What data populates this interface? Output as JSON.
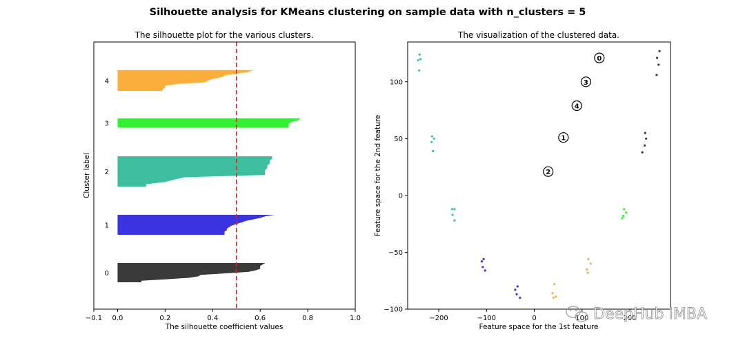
{
  "suptitle": "Silhouette analysis for KMeans clustering on sample data with n_clusters = 5",
  "watermark": "DeepHub IMBA",
  "chart_data": [
    {
      "type": "area",
      "title": "The silhouette plot for the various clusters.",
      "xlabel": "The silhouette coefficient values",
      "ylabel": "Cluster label",
      "xlim": [
        -0.1,
        1.0
      ],
      "xticks": [
        -0.1,
        0.0,
        0.2,
        0.4,
        0.6,
        0.8,
        1.0
      ],
      "xtick_labels": [
        "−0.1",
        "0.0",
        "0.2",
        "0.4",
        "0.6",
        "0.8",
        "1.0"
      ],
      "average_silhouette_score": 0.5,
      "average_line_color": "#d62728",
      "clusters": [
        {
          "label": "0",
          "color": "#3a3a3a",
          "profile": [
            0.62,
            0.61,
            0.6,
            0.6,
            0.6,
            0.58,
            0.55,
            0.45,
            0.35,
            0.34,
            0.3,
            0.2,
            0.1,
            0.1
          ]
        },
        {
          "label": "1",
          "color": "#3a34e0",
          "profile": [
            0.66,
            0.62,
            0.6,
            0.57,
            0.54,
            0.52,
            0.5,
            0.48,
            0.47,
            0.46,
            0.46,
            0.45,
            0.45,
            0.45
          ]
        },
        {
          "label": "2",
          "color": "#3dbf9f",
          "profile": [
            0.65,
            0.65,
            0.64,
            0.64,
            0.63,
            0.63,
            0.62,
            0.62,
            0.62,
            0.28,
            0.24,
            0.2,
            0.12,
            0.12
          ]
        },
        {
          "label": "3",
          "color": "#33f033",
          "profile": [
            0.77,
            0.76,
            0.73,
            0.72,
            0.72,
            0.72
          ]
        },
        {
          "label": "4",
          "color": "#fbae3c",
          "profile": [
            0.57,
            0.55,
            0.5,
            0.45,
            0.44,
            0.4,
            0.38,
            0.37,
            0.25,
            0.2,
            0.2,
            0.19,
            0.19
          ]
        }
      ]
    },
    {
      "type": "scatter",
      "title": "The visualization of the clustered data.",
      "xlabel": "Feature space for the 1st feature",
      "ylabel": "Feature space for the 2nd feature",
      "xlim": [
        -265,
        285
      ],
      "ylim": [
        -100,
        135
      ],
      "xticks": [
        -200,
        -100,
        0,
        100,
        200
      ],
      "xtick_labels": [
        "−200",
        "−100",
        "0",
        "100",
        "200"
      ],
      "yticks": [
        -100,
        -50,
        0,
        50,
        100
      ],
      "ytick_labels": [
        "−100",
        "−50",
        "0",
        "50",
        "100"
      ],
      "series": [
        {
          "cluster": "0",
          "color": "#3a3a3a",
          "points": [
            [
              262,
              127
            ],
            [
              257,
              121
            ],
            [
              260,
              115
            ],
            [
              256,
              106
            ],
            [
              232,
              55
            ],
            [
              234,
              50
            ],
            [
              231,
              44
            ],
            [
              226,
              38
            ]
          ]
        },
        {
          "cluster": "1",
          "color": "#3a34e0",
          "points": [
            [
              -110,
              -58
            ],
            [
              -106,
              -56
            ],
            [
              -108,
              -63
            ],
            [
              -103,
              -66
            ],
            [
              -40,
              -83
            ],
            [
              -35,
              -80
            ],
            [
              -37,
              -87
            ],
            [
              -30,
              -90
            ]
          ]
        },
        {
          "cluster": "2",
          "color": "#3dbf9f",
          "points": [
            [
              -240,
              124
            ],
            [
              -243,
              119
            ],
            [
              -238,
              120
            ],
            [
              -241,
              110
            ],
            [
              -214,
              52
            ],
            [
              -210,
              50
            ],
            [
              -215,
              47
            ],
            [
              -212,
              39
            ],
            [
              -172,
              -12
            ],
            [
              -167,
              -12
            ],
            [
              -171,
              -17
            ],
            [
              -167,
              -22
            ]
          ]
        },
        {
          "cluster": "3",
          "color": "#33f033",
          "points": [
            [
              188,
              -12
            ],
            [
              192,
              -15
            ],
            [
              186,
              -18
            ],
            [
              184,
              -20
            ]
          ]
        },
        {
          "cluster": "4",
          "color": "#fbae3c",
          "points": [
            [
              42,
              -78
            ],
            [
              38,
              -86
            ],
            [
              40,
              -90
            ],
            [
              45,
              -89
            ],
            [
              113,
              -56
            ],
            [
              118,
              -60
            ],
            [
              110,
              -65
            ],
            [
              112,
              -68
            ]
          ]
        }
      ],
      "centers": [
        {
          "label": "0",
          "x": 136,
          "y": 121
        },
        {
          "label": "1",
          "x": 61,
          "y": 51
        },
        {
          "label": "2",
          "x": 29,
          "y": 21
        },
        {
          "label": "3",
          "x": 108,
          "y": 100
        },
        {
          "label": "4",
          "x": 89,
          "y": 79
        }
      ]
    }
  ]
}
